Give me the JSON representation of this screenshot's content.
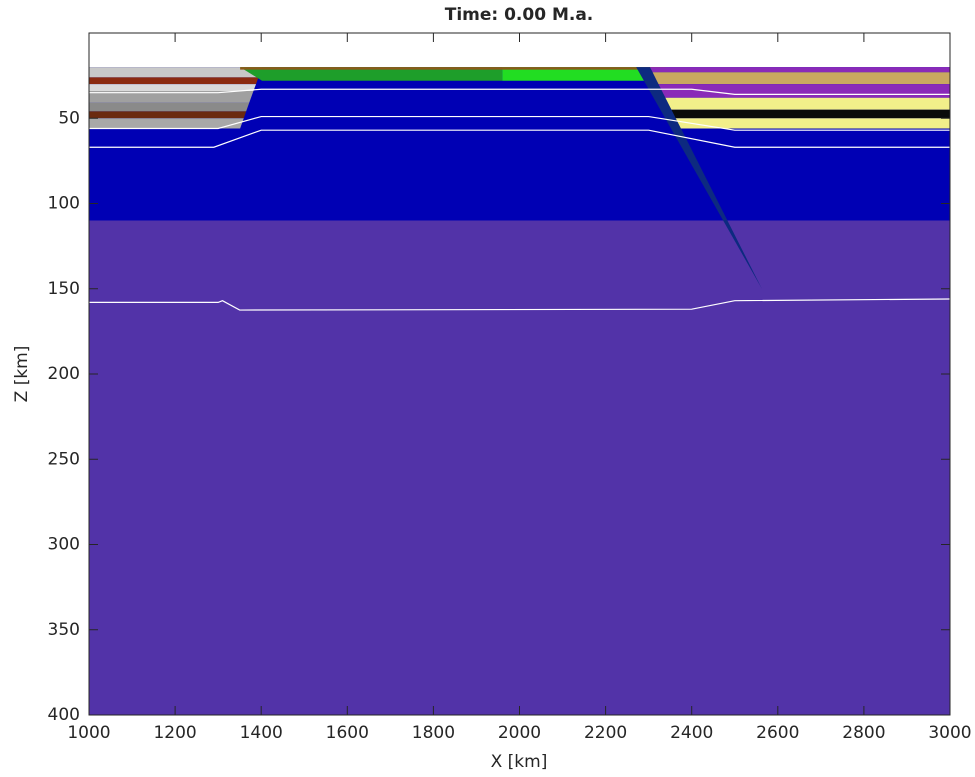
{
  "chart_data": {
    "type": "section",
    "title": "Time: 0.00 M.a.",
    "x_label": "X [km]",
    "y_label": "Z [km]",
    "xlim": [
      1000,
      3000
    ],
    "ylim": [
      400,
      0
    ],
    "xticks": [
      1000,
      1200,
      1400,
      1600,
      1800,
      2000,
      2200,
      2400,
      2600,
      2800,
      3000
    ],
    "yticks": [
      50,
      100,
      150,
      200,
      250,
      300,
      350,
      400
    ],
    "regions": [
      {
        "color": "#5233a8",
        "x": [
          1000,
          3000,
          3000,
          1000
        ],
        "y": [
          110,
          110,
          400,
          400
        ]
      },
      {
        "color": "#0000b4",
        "x": [
          1000,
          3000,
          3000,
          1000
        ],
        "y": [
          20,
          20,
          110,
          110
        ]
      },
      {
        "color": "#c8c8c8",
        "x": [
          1000,
          1402,
          1393.5,
          1000
        ],
        "y": [
          20,
          20,
          26,
          26
        ]
      },
      {
        "color": "#8b2a10",
        "x": [
          1000,
          1393.5,
          1388,
          1000
        ],
        "y": [
          26,
          26,
          30,
          30
        ]
      },
      {
        "color": "#d9d9d9",
        "x": [
          1000,
          1388,
          1382,
          1000
        ],
        "y": [
          30,
          30,
          34,
          34
        ]
      },
      {
        "color": "#a0a0a0",
        "x": [
          1000,
          1382,
          1372,
          1000
        ],
        "y": [
          34,
          34,
          41,
          41
        ]
      },
      {
        "color": "#8a8a8a",
        "x": [
          1000,
          1372,
          1365,
          1000
        ],
        "y": [
          41,
          41,
          46,
          46
        ]
      },
      {
        "color": "#6b2a10",
        "x": [
          1000,
          1365,
          1359.5,
          1000
        ],
        "y": [
          46,
          46,
          50,
          50
        ]
      },
      {
        "color": "#a8a8a8",
        "x": [
          1000,
          1359.5,
          1351,
          1000
        ],
        "y": [
          50,
          50,
          56,
          56
        ]
      },
      {
        "color": "#1e9e2a",
        "x": [
          1351,
          1960,
          1960,
          1402
        ],
        "y": [
          20,
          20,
          28,
          28
        ]
      },
      {
        "color": "#22dd22",
        "x": [
          1960,
          2290,
          2300,
          1960
        ],
        "y": [
          20,
          20,
          28,
          28
        ]
      },
      {
        "color": "#8b5a1a",
        "x": [
          1351,
          2340,
          2340,
          1351
        ],
        "y": [
          20,
          20,
          21.5,
          21.5
        ]
      },
      {
        "color": "#8a2ab8",
        "x": [
          2303,
          3000,
          3000,
          2309
        ],
        "y": [
          20,
          20,
          23,
          23
        ]
      },
      {
        "color": "#c9a860",
        "x": [
          2309,
          3000,
          3000,
          2322
        ],
        "y": [
          23,
          23,
          30,
          30
        ]
      },
      {
        "color": "#8a2ab8",
        "x": [
          2322,
          3000,
          3000,
          2338
        ],
        "y": [
          30,
          30,
          38,
          38
        ]
      },
      {
        "color": "#f2ef8a",
        "x": [
          2338,
          3000,
          3000,
          2352
        ],
        "y": [
          38,
          38,
          45,
          45
        ]
      },
      {
        "color": "#0a0a0a",
        "x": [
          2352,
          3000,
          3000,
          2361
        ],
        "y": [
          45,
          45,
          50,
          50
        ]
      },
      {
        "color": "#f2ef8a",
        "x": [
          2361,
          3000,
          3000,
          2373
        ],
        "y": [
          50,
          50,
          56,
          56
        ]
      },
      {
        "color": "#0d2a80",
        "x": [
          2271,
          2303,
          2563
        ],
        "y": [
          20,
          20,
          150
        ]
      }
    ],
    "lines": [
      {
        "color": "#ffffff",
        "x": [
          1000,
          1300,
          1400,
          2400,
          2500,
          3000
        ],
        "y": [
          35,
          35,
          33,
          33,
          36,
          36
        ]
      },
      {
        "color": "#ffffff",
        "x": [
          1000,
          1300,
          1400,
          2300,
          2500,
          3000
        ],
        "y": [
          56,
          56,
          49,
          49,
          57,
          57
        ]
      },
      {
        "color": "#ffffff",
        "x": [
          1000,
          1290,
          1400,
          2300,
          2500,
          3000
        ],
        "y": [
          67,
          67,
          57,
          57,
          67,
          67
        ]
      },
      {
        "color": "#ffffff",
        "x": [
          1000,
          1300,
          1310,
          1350,
          2400,
          2500,
          3000
        ],
        "y": [
          158,
          158,
          157,
          162.5,
          162,
          157,
          156
        ]
      }
    ]
  }
}
